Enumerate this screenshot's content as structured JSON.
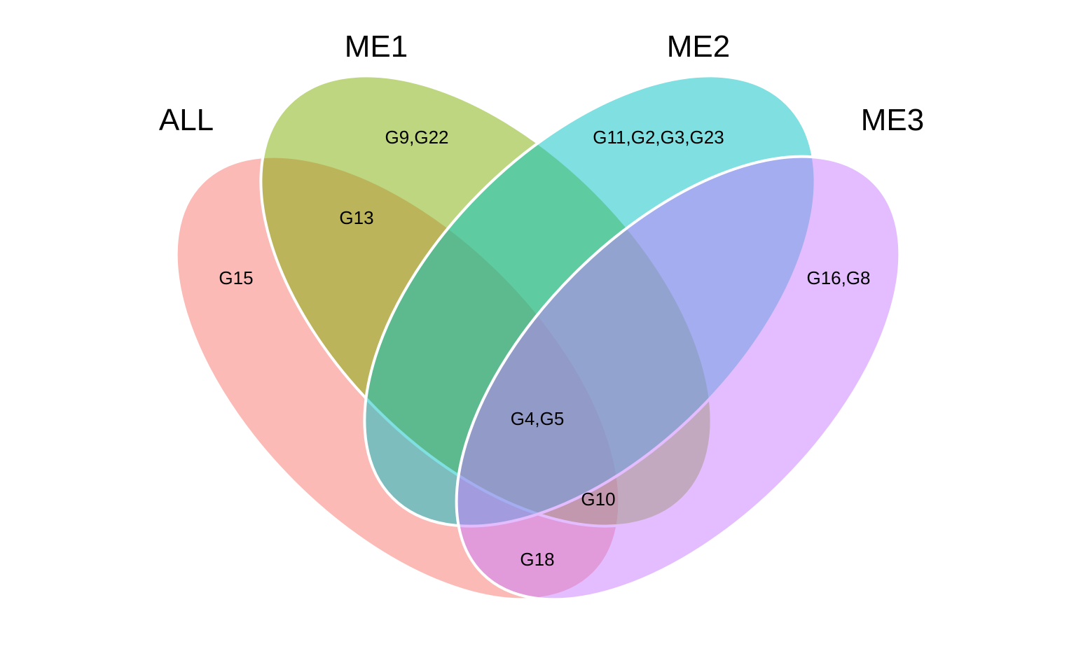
{
  "sets": [
    {
      "name": "ALL",
      "color": "#F8766D"
    },
    {
      "name": "ME1",
      "color": "#7CAE00"
    },
    {
      "name": "ME2",
      "color": "#00BFC4"
    },
    {
      "name": "ME3",
      "color": "#C77CFF"
    }
  ],
  "regions": [
    {
      "sets": [
        "ALL"
      ],
      "label": "G15"
    },
    {
      "sets": [
        "ME1"
      ],
      "label": "G9,G22"
    },
    {
      "sets": [
        "ME2"
      ],
      "label": "G11,G2,G3,G23"
    },
    {
      "sets": [
        "ME3"
      ],
      "label": "G16,G8"
    },
    {
      "sets": [
        "ALL",
        "ME1"
      ],
      "label": "G13"
    },
    {
      "sets": [
        "ALL",
        "ME1",
        "ME2",
        "ME3"
      ],
      "label": "G4,G5"
    },
    {
      "sets": [
        "ALL",
        "ME2",
        "ME3"
      ],
      "label": "G10"
    },
    {
      "sets": [
        "ALL",
        "ME3"
      ],
      "label": "G18"
    }
  ]
}
